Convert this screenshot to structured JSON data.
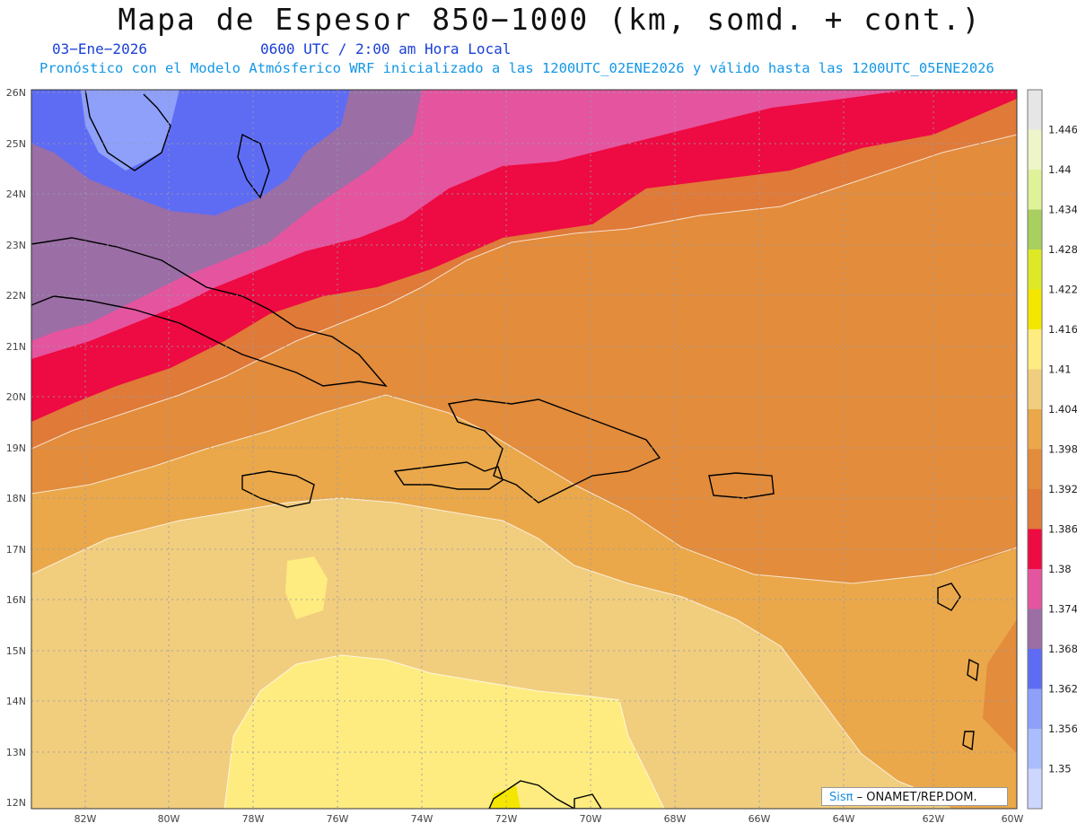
{
  "header": {
    "title": "Mapa de Espesor 850−1000 (km, somd. + cont.)",
    "date": "03−Ene−2026",
    "time": "0600 UTC / 2:00 am Hora Local",
    "model_info": "Pronóstico con el Modelo Atmósferico WRF inicializado a las 1200UTC_02ENE2026 y válido hasta las  1200UTC_05ENE2026"
  },
  "axes": {
    "lat_labels": [
      "26N",
      "25N",
      "24N",
      "23N",
      "22N",
      "21N",
      "20N",
      "19N",
      "18N",
      "17N",
      "16N",
      "15N",
      "14N",
      "13N",
      "12N"
    ],
    "lon_labels": [
      "82W",
      "80W",
      "78W",
      "76W",
      "74W",
      "72W",
      "70W",
      "68W",
      "66W",
      "64W",
      "62W",
      "60W"
    ]
  },
  "colorbar": {
    "labels": [
      "1.446",
      "1.44",
      "1.434",
      "1.428",
      "1.422",
      "1.416",
      "1.41",
      "1.404",
      "1.398",
      "1.392",
      "1.386",
      "1.38",
      "1.374",
      "1.368",
      "1.362",
      "1.356",
      "1.35"
    ],
    "colors": [
      "#e6e6e6",
      "#eef5c8",
      "#dff29a",
      "#a8cf5f",
      "#dfe826",
      "#f5e600",
      "#ffec80",
      "#f1cd7e",
      "#eaa84a",
      "#e28c3c",
      "#e07a38",
      "#ee0a42",
      "#e5549e",
      "#9b6ea6",
      "#5e6cf4",
      "#8ea0fa",
      "#aabdfc",
      "#ccd6ff"
    ]
  },
  "credit": {
    "brand": "Sisπ",
    "text": " –  ONAMET/REP.DOM."
  }
}
